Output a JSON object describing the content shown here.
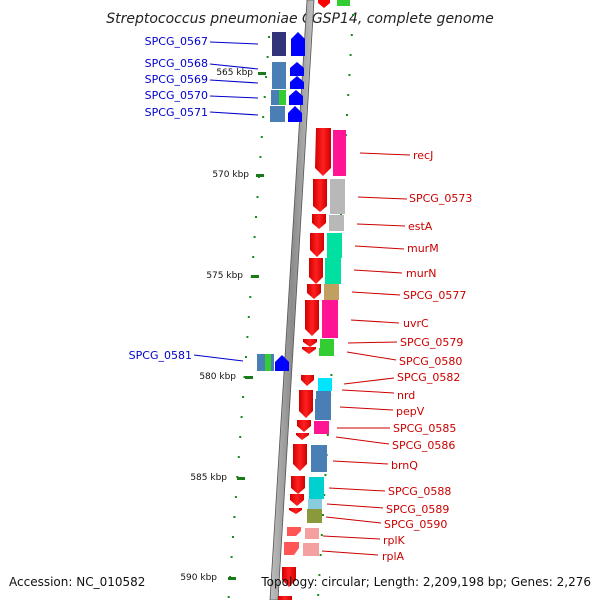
{
  "header": {
    "title": "Streptococcus pneumoniae CGSP14, complete genome"
  },
  "footer": {
    "accession": "Accession: NC_010582",
    "topology": "Topology: circular; Length: 2,209,198 bp; Genes: 2,276"
  },
  "scale": {
    "ticks": [
      "565 kbp",
      "570 kbp",
      "575 kbp",
      "580 kbp",
      "585 kbp",
      "590 kbp"
    ]
  },
  "genes_left": [
    "SPCG_0567",
    "SPCG_0568",
    "SPCG_0569",
    "SPCG_0570",
    "SPCG_0571",
    "SPCG_0581"
  ],
  "genes_right": [
    "recJ",
    "SPCG_0573",
    "estA",
    "murM",
    "murN",
    "SPCG_0577",
    "uvrC",
    "SPCG_0579",
    "SPCG_0580",
    "SPCG_0582",
    "nrd",
    "pepV",
    "SPCG_0585",
    "SPCG_0586",
    "brnQ",
    "SPCG_0588",
    "SPCG_0589",
    "SPCG_0590",
    "rplK",
    "rplA"
  ],
  "colors": {
    "forward_strand": "#ff0000",
    "reverse_strand": "#0000ff",
    "left_label": "#0000cc",
    "right_label": "#cc0000",
    "tick": "#1a7a1a"
  }
}
